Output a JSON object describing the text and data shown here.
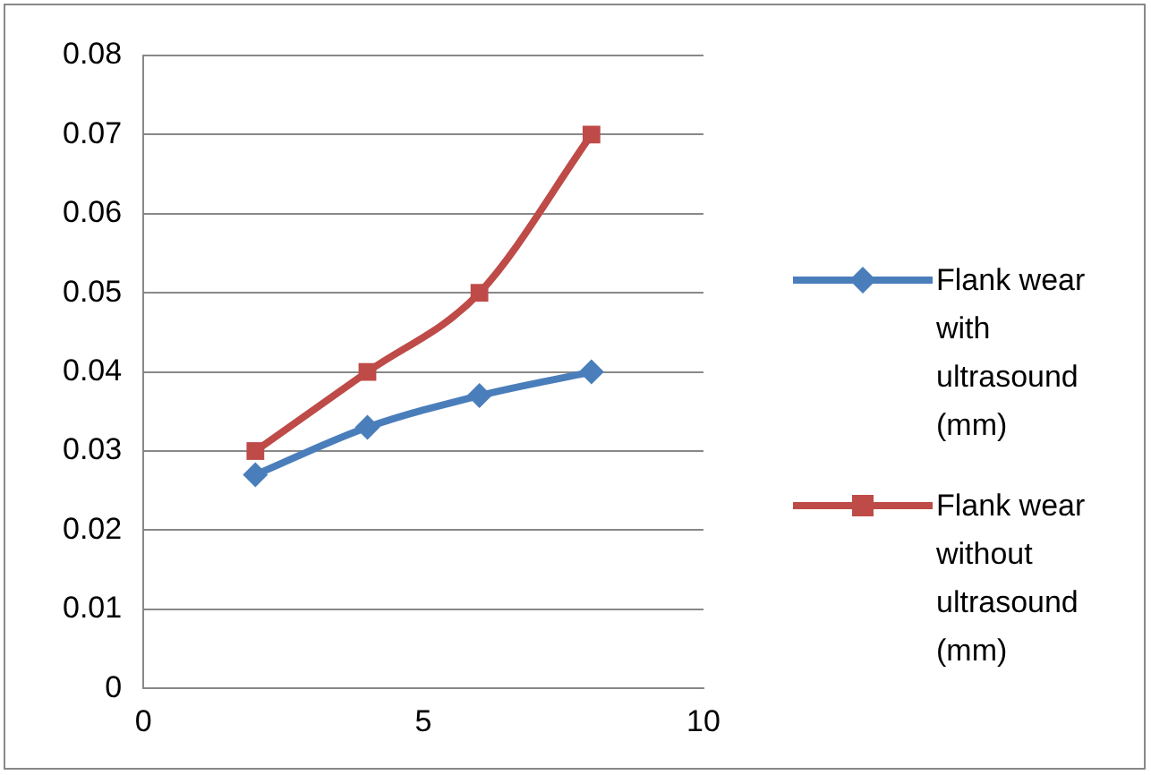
{
  "chart_data": {
    "type": "line",
    "x": [
      2,
      4,
      6,
      8
    ],
    "series": [
      {
        "name": "Flank wear with ultrasound (mm)",
        "color": "#4a7ebb",
        "values": [
          0.027,
          0.033,
          0.037,
          0.04
        ],
        "marker": "diamond"
      },
      {
        "name": "Flank wear without ultrasound (mm)",
        "color": "#be4b48",
        "values": [
          0.03,
          0.04,
          0.05,
          0.07
        ],
        "marker": "square"
      }
    ],
    "xlim": [
      0,
      10
    ],
    "xticks": [
      0,
      5,
      10
    ],
    "ylim": [
      0,
      0.08
    ],
    "yticks": [
      0,
      0.01,
      0.02,
      0.03,
      0.04,
      0.05,
      0.06,
      0.07,
      0.08
    ],
    "grid": "y",
    "legend": "right"
  }
}
